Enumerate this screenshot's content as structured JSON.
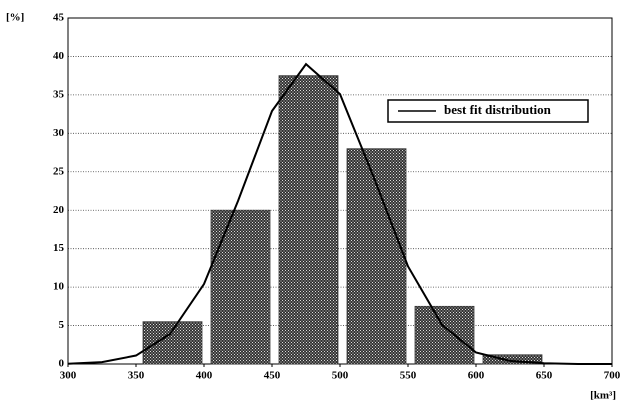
{
  "chart_data": {
    "type": "histogram",
    "y_label": "[%]",
    "x_label": "[km³]",
    "bins": [
      350,
      400,
      450,
      500,
      550,
      600,
      650
    ],
    "values": [
      5.5,
      20,
      37.5,
      28,
      7.5,
      1.2
    ],
    "color": "#3a3a3a",
    "xlim": [
      300,
      700
    ],
    "xticks": [
      300,
      350,
      400,
      450,
      500,
      550,
      600,
      650,
      700
    ],
    "ylim": [
      0,
      45
    ],
    "yticks": [
      0,
      5,
      10,
      15,
      20,
      25,
      30,
      35,
      40,
      45
    ],
    "grid": true,
    "legend": "upper right",
    "series": [
      {
        "name": "best fit distribution",
        "type": "line",
        "color": "#000000",
        "x": [
          300,
          325,
          350,
          375,
          400,
          425,
          450,
          475,
          500,
          525,
          550,
          575,
          600,
          625,
          650,
          675,
          700
        ],
        "values": [
          0.04,
          0.24,
          1.1,
          3.9,
          10.4,
          21.2,
          32.9,
          39,
          35.1,
          24.2,
          12.7,
          5.1,
          1.5,
          0.4,
          0.1,
          0,
          0
        ]
      }
    ]
  }
}
